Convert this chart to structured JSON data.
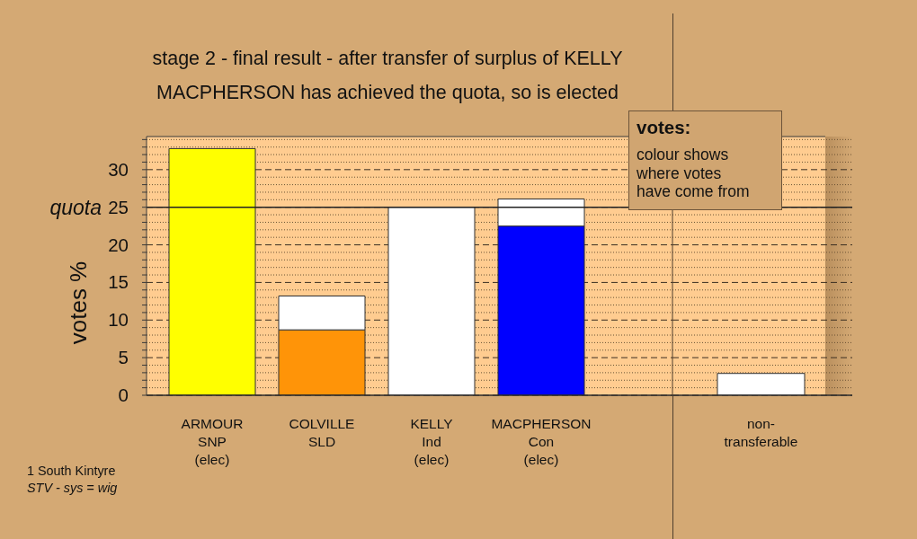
{
  "chart_data": [
    {
      "type": "bar",
      "title": "stage 2 - final result - after transfer of surplus of KELLY",
      "subtitle": "MACPHERSON has achieved the quota, so is elected",
      "ylabel": "votes %",
      "categories": [
        "ARMOUR\nSNP\n(elec)",
        "COLVILLE\nSLD",
        "KELLY\nInd\n(elec)",
        "MACPHERSON\nCon\n(elec)"
      ],
      "stacked": true,
      "series": [
        {
          "colors": [
            "#ffff00",
            "#ff9408",
            "#ffffff",
            "#0000ff"
          ],
          "values": [
            32.8,
            8.7,
            25,
            22.5
          ]
        },
        {
          "color": "#ffffff",
          "values": [
            null,
            4.5,
            null,
            3.6
          ]
        }
      ],
      "ylim": [
        0,
        34.4
      ],
      "yticks": [
        0,
        {
          "value": 1,
          "label": null
        },
        {
          "value": 2,
          "label": null
        },
        {
          "value": 3,
          "label": null
        },
        {
          "value": 4,
          "label": null
        },
        5,
        {
          "value": 6,
          "label": null
        },
        {
          "value": 7,
          "label": null
        },
        {
          "value": 8,
          "label": null
        },
        {
          "value": 9,
          "label": null
        },
        10,
        {
          "value": 11,
          "label": null
        },
        {
          "value": 12,
          "label": null
        },
        {
          "value": 13,
          "label": null
        },
        {
          "value": 14,
          "label": null
        },
        15,
        {
          "value": 16,
          "label": null
        },
        {
          "value": 17,
          "label": null
        },
        {
          "value": 18,
          "label": null
        },
        {
          "value": 19,
          "label": null
        },
        20,
        {
          "value": 21,
          "label": null
        },
        {
          "value": 22,
          "label": null
        },
        {
          "value": 23,
          "label": null
        },
        {
          "value": 24,
          "label": null
        },
        25,
        {
          "value": 26,
          "label": null
        },
        {
          "value": 27,
          "label": null
        },
        {
          "value": 28,
          "label": null
        },
        {
          "value": 29,
          "label": null
        },
        30,
        {
          "value": 31,
          "label": null
        },
        {
          "value": 32,
          "label": null
        },
        {
          "value": 33,
          "label": null
        },
        {
          "value": 34,
          "label": null
        }
      ],
      "grid": "y",
      "ref_lines": [
        {
          "axis": "y",
          "value": 25,
          "label": "quota"
        }
      ],
      "annotations": [
        "votes:",
        "colour shows\nwhere votes\nhave come from",
        "1 South Kintyre",
        "STV - sys = wig"
      ]
    },
    {
      "type": "bar",
      "categories": [
        "non-\ntransferable"
      ],
      "values": [
        2.9
      ],
      "color": "#ffffff",
      "ylim": [
        0,
        34.4
      ],
      "yticks": [
        0,
        {
          "value": 1,
          "label": null
        },
        {
          "value": 2,
          "label": null
        },
        {
          "value": 3,
          "label": null
        },
        {
          "value": 4,
          "label": null
        },
        5,
        {
          "value": 6,
          "label": null
        },
        {
          "value": 7,
          "label": null
        },
        {
          "value": 8,
          "label": null
        },
        {
          "value": 9,
          "label": null
        },
        10,
        {
          "value": 11,
          "label": null
        },
        {
          "value": 12,
          "label": null
        },
        {
          "value": 13,
          "label": null
        },
        {
          "value": 14,
          "label": null
        },
        15,
        {
          "value": 16,
          "label": null
        },
        {
          "value": 17,
          "label": null
        },
        {
          "value": 18,
          "label": null
        },
        {
          "value": 19,
          "label": null
        },
        20,
        {
          "value": 21,
          "label": null
        },
        {
          "value": 22,
          "label": null
        },
        {
          "value": 23,
          "label": null
        },
        {
          "value": 24,
          "label": null
        },
        25,
        {
          "value": 26,
          "label": null
        },
        {
          "value": 27,
          "label": null
        },
        {
          "value": 28,
          "label": null
        },
        {
          "value": 29,
          "label": null
        },
        30,
        {
          "value": 31,
          "label": null
        },
        {
          "value": 32,
          "label": null
        },
        {
          "value": 33,
          "label": null
        },
        {
          "value": 34,
          "label": null
        }
      ],
      "grid": "y",
      "tick_labels": "x",
      "ref_lines": [
        {
          "axis": "y",
          "value": 25
        }
      ]
    }
  ]
}
